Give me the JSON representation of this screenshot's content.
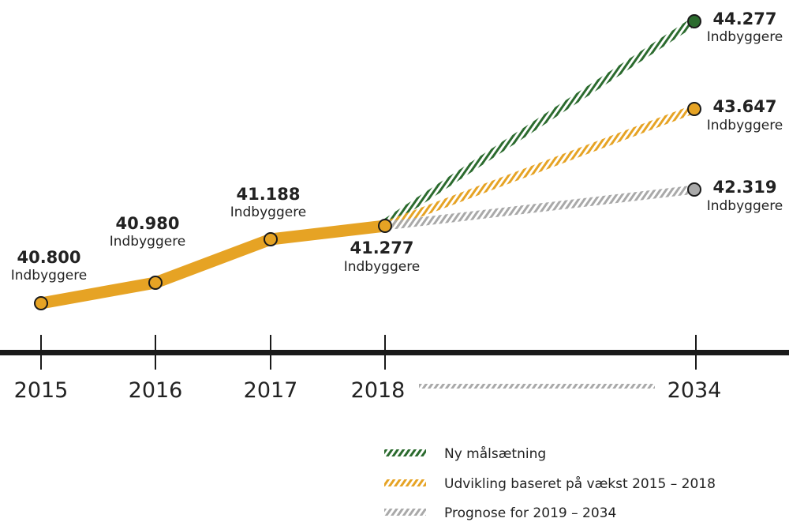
{
  "chart_data": {
    "type": "line",
    "x_labels": [
      "2015",
      "2016",
      "2017",
      "2018",
      "2034"
    ],
    "unit_label": "Indbyggere",
    "colors": {
      "history": "#e6a324",
      "ny_malsaetning": "#2b6b2e",
      "udvikling": "#e6a324",
      "prognose": "#a9a9a9"
    },
    "history": {
      "x": [
        "2015",
        "2016",
        "2017",
        "2018"
      ],
      "values": [
        "40.800",
        "40.980",
        "41.188",
        "41.277"
      ]
    },
    "projections": [
      {
        "name": "Ny målsætning",
        "from_x": "2018",
        "from": "41.277",
        "to_x": "2034",
        "to": "44.277",
        "color": "#2b6b2e"
      },
      {
        "name": "Udvikling baseret på vækst 2015 – 2018",
        "from_x": "2018",
        "from": "41.277",
        "to_x": "2034",
        "to": "43.647",
        "color": "#e6a324"
      },
      {
        "name": "Prognose for 2019 – 2034",
        "from_x": "2018",
        "from": "41.277",
        "to_x": "2034",
        "to": "42.319",
        "color": "#a9a9a9"
      }
    ]
  },
  "legend": [
    {
      "label": "Ny målsætning",
      "color": "#2b6b2e"
    },
    {
      "label": "Udvikling baseret på vækst 2015 – 2018",
      "color": "#e6a324"
    },
    {
      "label": "Prognose for 2019 – 2034",
      "color": "#a9a9a9"
    }
  ]
}
